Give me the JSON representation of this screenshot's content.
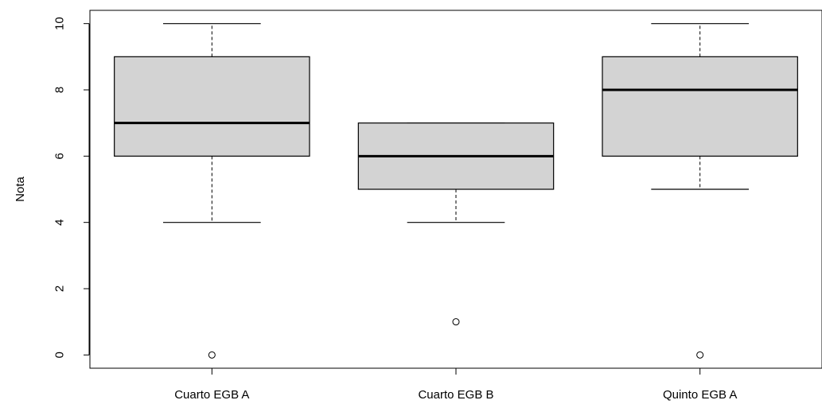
{
  "chart_data": {
    "type": "boxplot",
    "title": "",
    "xlabel": "",
    "ylabel": "Nota",
    "ylim": [
      -0.4,
      10.4
    ],
    "y_ticks": [
      0,
      2,
      4,
      6,
      8,
      10
    ],
    "y_tick_labels": [
      "0",
      "2",
      "4",
      "6",
      "8",
      "10"
    ],
    "grid": false,
    "categories": [
      "Cuarto EGB A",
      "Cuarto EGB B",
      "Quinto EGB A"
    ],
    "boxes": [
      {
        "category": "Cuarto EGB A",
        "whisker_low": 4,
        "q1": 6,
        "median": 7,
        "q3": 9,
        "whisker_high": 10,
        "outliers": [
          0
        ]
      },
      {
        "category": "Cuarto EGB B",
        "whisker_low": 4,
        "q1": 5,
        "median": 6,
        "q3": 7,
        "whisker_high": 7,
        "outliers": [
          1
        ]
      },
      {
        "category": "Quinto EGB A",
        "whisker_low": 5,
        "q1": 6,
        "median": 8,
        "q3": 9,
        "whisker_high": 10,
        "outliers": [
          0
        ]
      }
    ],
    "colors": {
      "box_fill": "#d3d3d3",
      "stroke": "#000000"
    }
  }
}
